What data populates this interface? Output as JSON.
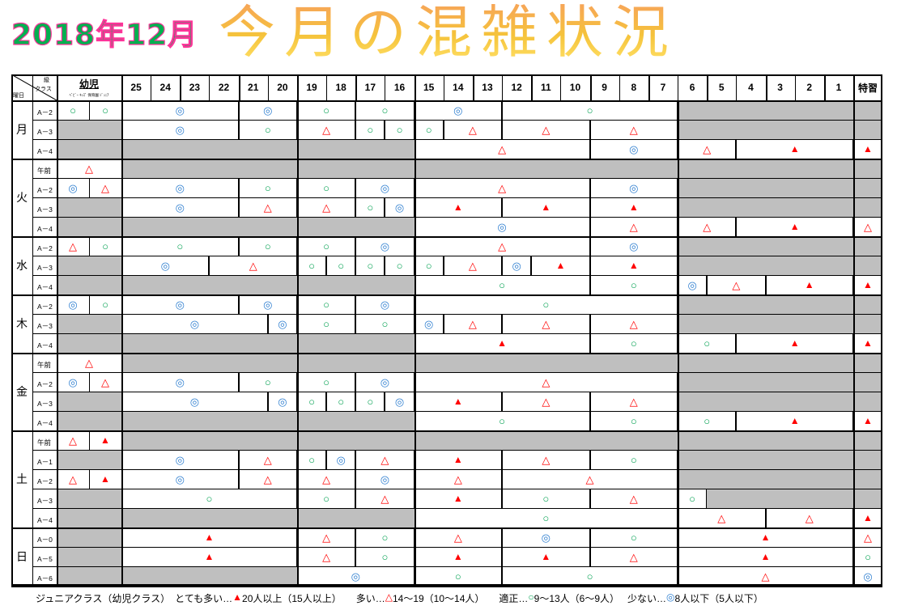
{
  "title": {
    "date": "2018年12月",
    "main": "今月の混雑状況"
  },
  "header": {
    "corner_top": "級",
    "corner_mid": "クラス",
    "corner_bottom": "曜日",
    "kids": "幼児",
    "kids_sub": "ﾍﾞﾋﾞｰ ｷｯｽﾞ 保育園 ｼﾞｭﾆｱ",
    "special": "特習",
    "days": [
      "25",
      "24",
      "23",
      "22",
      "21",
      "20",
      "19",
      "18",
      "17",
      "16",
      "15",
      "14",
      "13",
      "12",
      "11",
      "10",
      "9",
      "8",
      "7",
      "6",
      "5",
      "4",
      "3",
      "2",
      "1"
    ]
  },
  "weekdays": [
    {
      "label": "月",
      "rows": [
        {
          "cls": "A－2",
          "k": [
            "○",
            "○"
          ],
          "s": "",
          "segs": [
            [
              0,
              3,
              "◎"
            ],
            [
              4,
              5,
              "◎"
            ],
            [
              6,
              7,
              "○"
            ],
            [
              8,
              9,
              "○"
            ],
            [
              10,
              12,
              "◎"
            ],
            [
              13,
              18,
              "○"
            ]
          ]
        },
        {
          "cls": "A－3",
          "k": [],
          "s": "",
          "segs": [
            [
              0,
              3,
              "◎"
            ],
            [
              4,
              5,
              "○"
            ],
            [
              6,
              7,
              "△"
            ],
            [
              8,
              8,
              "○"
            ],
            [
              9,
              9,
              "○"
            ],
            [
              10,
              10,
              "○"
            ],
            [
              11,
              12,
              "△"
            ],
            [
              13,
              15,
              "△"
            ],
            [
              16,
              18,
              "△"
            ]
          ]
        },
        {
          "cls": "A－4",
          "k": [],
          "s": "▲",
          "segs": [
            [
              10,
              15,
              "△"
            ],
            [
              16,
              18,
              "◎"
            ],
            [
              19,
              20,
              "△"
            ],
            [
              21,
              24,
              "▲"
            ]
          ]
        }
      ]
    },
    {
      "label": "火",
      "rows": [
        {
          "cls": "午前",
          "k": [
            "△"
          ],
          "s": "",
          "segs": []
        },
        {
          "cls": "A－2",
          "k": [
            "◎",
            "△"
          ],
          "s": "",
          "segs": [
            [
              0,
              3,
              "◎"
            ],
            [
              4,
              5,
              "○"
            ],
            [
              6,
              7,
              "○"
            ],
            [
              8,
              9,
              "◎"
            ],
            [
              10,
              15,
              "△"
            ],
            [
              16,
              18,
              "◎"
            ]
          ]
        },
        {
          "cls": "A－3",
          "k": [],
          "s": "",
          "segs": [
            [
              0,
              3,
              "◎"
            ],
            [
              4,
              5,
              "△"
            ],
            [
              6,
              7,
              "△"
            ],
            [
              8,
              8,
              "○"
            ],
            [
              9,
              9,
              "◎"
            ],
            [
              10,
              12,
              "▲"
            ],
            [
              13,
              15,
              "▲"
            ],
            [
              16,
              18,
              "▲"
            ]
          ]
        },
        {
          "cls": "A－4",
          "k": [],
          "s": "△",
          "segs": [
            [
              10,
              15,
              "◎"
            ],
            [
              16,
              18,
              "△"
            ],
            [
              19,
              20,
              "△"
            ],
            [
              21,
              24,
              "▲"
            ]
          ]
        }
      ]
    },
    {
      "label": "水",
      "rows": [
        {
          "cls": "A－2",
          "k": [
            "△",
            "○"
          ],
          "s": "",
          "segs": [
            [
              0,
              3,
              "○"
            ],
            [
              4,
              5,
              "○"
            ],
            [
              6,
              7,
              "○"
            ],
            [
              8,
              9,
              "◎"
            ],
            [
              10,
              15,
              "△"
            ],
            [
              16,
              18,
              "◎"
            ]
          ]
        },
        {
          "cls": "A－3",
          "k": [],
          "s": "",
          "segs": [
            [
              0,
              2,
              "◎"
            ],
            [
              3,
              5,
              "△"
            ],
            [
              6,
              6,
              "○"
            ],
            [
              7,
              7,
              "○"
            ],
            [
              8,
              8,
              "○"
            ],
            [
              9,
              9,
              "○"
            ],
            [
              10,
              10,
              "○"
            ],
            [
              11,
              12,
              "△"
            ],
            [
              13,
              13,
              "◎"
            ],
            [
              14,
              15,
              "▲"
            ],
            [
              16,
              18,
              "▲"
            ]
          ]
        },
        {
          "cls": "A－4",
          "k": [],
          "s": "▲",
          "segs": [
            [
              10,
              15,
              "○"
            ],
            [
              16,
              18,
              "○"
            ],
            [
              19,
              19,
              "◎"
            ],
            [
              20,
              21,
              "△"
            ],
            [
              22,
              24,
              "▲"
            ]
          ]
        }
      ]
    },
    {
      "label": "木",
      "rows": [
        {
          "cls": "A－2",
          "k": [
            "◎",
            "○"
          ],
          "s": "",
          "segs": [
            [
              0,
              3,
              "◎"
            ],
            [
              4,
              5,
              "◎"
            ],
            [
              6,
              7,
              "○"
            ],
            [
              8,
              9,
              "◎"
            ],
            [
              10,
              18,
              "○"
            ]
          ]
        },
        {
          "cls": "A－3",
          "k": [],
          "s": "",
          "segs": [
            [
              0,
              4,
              "◎"
            ],
            [
              5,
              5,
              "◎"
            ],
            [
              6,
              7,
              "○"
            ],
            [
              8,
              9,
              "○"
            ],
            [
              10,
              10,
              "◎"
            ],
            [
              11,
              12,
              "△"
            ],
            [
              13,
              15,
              "△"
            ],
            [
              16,
              18,
              "△"
            ]
          ]
        },
        {
          "cls": "A－4",
          "k": [],
          "s": "▲",
          "segs": [
            [
              10,
              15,
              "▲"
            ],
            [
              16,
              18,
              "○"
            ],
            [
              19,
              20,
              "○"
            ],
            [
              21,
              24,
              "▲"
            ]
          ]
        }
      ]
    },
    {
      "label": "金",
      "rows": [
        {
          "cls": "午前",
          "k": [
            "△"
          ],
          "s": "",
          "segs": []
        },
        {
          "cls": "A－2",
          "k": [
            "◎",
            "△"
          ],
          "s": "",
          "segs": [
            [
              0,
              3,
              "◎"
            ],
            [
              4,
              5,
              "○"
            ],
            [
              6,
              7,
              "○"
            ],
            [
              8,
              9,
              "◎"
            ],
            [
              10,
              18,
              "△"
            ]
          ]
        },
        {
          "cls": "A－3",
          "k": [],
          "s": "",
          "segs": [
            [
              0,
              4,
              "◎"
            ],
            [
              5,
              5,
              "◎"
            ],
            [
              6,
              6,
              "○"
            ],
            [
              7,
              7,
              "○"
            ],
            [
              8,
              8,
              "○"
            ],
            [
              9,
              9,
              "◎"
            ],
            [
              10,
              12,
              "▲"
            ],
            [
              13,
              15,
              "△"
            ],
            [
              16,
              18,
              "△"
            ]
          ]
        },
        {
          "cls": "A－4",
          "k": [],
          "s": "▲",
          "segs": [
            [
              10,
              15,
              "○"
            ],
            [
              16,
              18,
              "○"
            ],
            [
              19,
              20,
              "○"
            ],
            [
              21,
              24,
              "▲"
            ]
          ]
        }
      ]
    },
    {
      "label": "土",
      "rows": [
        {
          "cls": "午前",
          "k": [
            "△",
            "▲"
          ],
          "s": "",
          "segs": []
        },
        {
          "cls": "A－1",
          "k": [],
          "s": "",
          "segs": [
            [
              0,
              3,
              "◎"
            ],
            [
              4,
              5,
              "△"
            ],
            [
              6,
              6,
              "○"
            ],
            [
              7,
              7,
              "◎"
            ],
            [
              8,
              9,
              "△"
            ],
            [
              10,
              12,
              "▲"
            ],
            [
              13,
              15,
              "△"
            ],
            [
              16,
              18,
              "○"
            ]
          ]
        },
        {
          "cls": "A－2",
          "k": [
            "△",
            "▲"
          ],
          "s": "",
          "segs": [
            [
              0,
              3,
              "◎"
            ],
            [
              4,
              5,
              "△"
            ],
            [
              6,
              7,
              "△"
            ],
            [
              8,
              9,
              "◎"
            ],
            [
              10,
              12,
              "△"
            ],
            [
              13,
              18,
              "△"
            ]
          ]
        },
        {
          "cls": "A－3",
          "k": [],
          "s": "",
          "segs": [
            [
              0,
              5,
              "○"
            ],
            [
              6,
              7,
              "○"
            ],
            [
              8,
              9,
              "△"
            ],
            [
              10,
              12,
              "▲"
            ],
            [
              13,
              15,
              "○"
            ],
            [
              16,
              18,
              "△"
            ],
            [
              19,
              19,
              "○"
            ]
          ]
        },
        {
          "cls": "A－4",
          "k": [],
          "s": "▲",
          "segs": [
            [
              10,
              18,
              "○"
            ],
            [
              19,
              21,
              "△"
            ],
            [
              22,
              24,
              "△"
            ]
          ]
        }
      ]
    },
    {
      "label": "日",
      "rows": [
        {
          "cls": "A－0",
          "k": [],
          "s": "△",
          "segs": [
            [
              0,
              5,
              "▲"
            ],
            [
              6,
              7,
              "△"
            ],
            [
              8,
              9,
              "○"
            ],
            [
              10,
              12,
              "△"
            ],
            [
              13,
              15,
              "◎"
            ],
            [
              16,
              18,
              "○"
            ],
            [
              19,
              24,
              "▲"
            ]
          ]
        },
        {
          "cls": "A－5",
          "k": [],
          "s": "○",
          "segs": [
            [
              0,
              5,
              "▲"
            ],
            [
              6,
              7,
              "△"
            ],
            [
              8,
              9,
              "○"
            ],
            [
              10,
              12,
              "▲"
            ],
            [
              13,
              15,
              "▲"
            ],
            [
              16,
              18,
              "△"
            ],
            [
              19,
              24,
              "▲"
            ]
          ]
        },
        {
          "cls": "A－6",
          "k": [],
          "s": "◎",
          "segs": [
            [
              6,
              9,
              "◎"
            ],
            [
              10,
              12,
              "○"
            ],
            [
              13,
              18,
              "○"
            ],
            [
              19,
              24,
              "△"
            ]
          ]
        }
      ]
    }
  ],
  "legend": {
    "prefix": "ジュニアクラス（幼児クラス）",
    "very_busy": "とても多い…",
    "very_busy_sym": "▲",
    "very_busy_val": " 20人以上（15人以上）",
    "busy": "多い…",
    "busy_sym": "△",
    "busy_val": " 14～19（10～14人）",
    "ok": "適正…",
    "ok_sym": "○",
    "ok_val": " 9～13人（6～9人）",
    "few": "少ない…",
    "few_sym": "◎",
    "few_val": " 8人以下（5人以下）"
  },
  "colors": {
    "gray": "#bfbfbf",
    "red": "#ff0000",
    "green": "#00a050",
    "blue": "#2f7fd0"
  }
}
